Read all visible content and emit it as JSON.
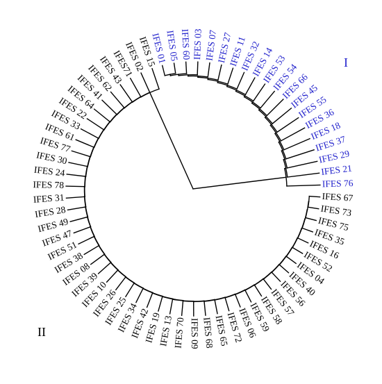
{
  "tree": {
    "group_labels": [
      {
        "text": "I",
        "color": "#2222cc"
      },
      {
        "text": "II",
        "color": "#000000"
      }
    ],
    "colors": {
      "cluster_I": "#2222cc",
      "cluster_II": "#000000",
      "branch": "#000000"
    },
    "leaves": [
      {
        "label": "IFES 01",
        "cluster": "I"
      },
      {
        "label": "IFES 05",
        "cluster": "I"
      },
      {
        "label": "IFES 60",
        "cluster": "I"
      },
      {
        "label": "IFES 03",
        "cluster": "I"
      },
      {
        "label": "IFES 07",
        "cluster": "I"
      },
      {
        "label": "IFES 27",
        "cluster": "I"
      },
      {
        "label": "IFES 11",
        "cluster": "I"
      },
      {
        "label": "IFES 32",
        "cluster": "I"
      },
      {
        "label": "IFES 14",
        "cluster": "I"
      },
      {
        "label": "IFES 53",
        "cluster": "I"
      },
      {
        "label": "IFES 54",
        "cluster": "I"
      },
      {
        "label": "IFES 66",
        "cluster": "I"
      },
      {
        "label": "IFES 45",
        "cluster": "I"
      },
      {
        "label": "IFES 55",
        "cluster": "I"
      },
      {
        "label": "IFES 36",
        "cluster": "I"
      },
      {
        "label": "IFES 18",
        "cluster": "I"
      },
      {
        "label": "IFES 37",
        "cluster": "I"
      },
      {
        "label": "IFES 29",
        "cluster": "I"
      },
      {
        "label": "IFES 21",
        "cluster": "I"
      },
      {
        "label": "IFES 76",
        "cluster": "I"
      },
      {
        "label": "IFES 67",
        "cluster": "II"
      },
      {
        "label": "IFES 73",
        "cluster": "II"
      },
      {
        "label": "IFES 75",
        "cluster": "II"
      },
      {
        "label": "IFES 35",
        "cluster": "II"
      },
      {
        "label": "IFES 16",
        "cluster": "II"
      },
      {
        "label": "IFES 52",
        "cluster": "II"
      },
      {
        "label": "IFES 04",
        "cluster": "II"
      },
      {
        "label": "IFES 40",
        "cluster": "II"
      },
      {
        "label": "IFES 56",
        "cluster": "II"
      },
      {
        "label": "IFES 57",
        "cluster": "II"
      },
      {
        "label": "IFES 58",
        "cluster": "II"
      },
      {
        "label": "IFES 59",
        "cluster": "II"
      },
      {
        "label": "IFES 06",
        "cluster": "II"
      },
      {
        "label": "IFES 72",
        "cluster": "II"
      },
      {
        "label": "IFES 65",
        "cluster": "II"
      },
      {
        "label": "IFES 68",
        "cluster": "II"
      },
      {
        "label": "IFES 09",
        "cluster": "II"
      },
      {
        "label": "IFES 70",
        "cluster": "II"
      },
      {
        "label": "IFES 13",
        "cluster": "II"
      },
      {
        "label": "IFES 19",
        "cluster": "II"
      },
      {
        "label": "IFES 42",
        "cluster": "II"
      },
      {
        "label": "IFES 34",
        "cluster": "II"
      },
      {
        "label": "IFES 25",
        "cluster": "II"
      },
      {
        "label": "IFES 26",
        "cluster": "II"
      },
      {
        "label": "IFES 10",
        "cluster": "II"
      },
      {
        "label": "IFES 39",
        "cluster": "II"
      },
      {
        "label": "IFES 08",
        "cluster": "II"
      },
      {
        "label": "IFES 38",
        "cluster": "II"
      },
      {
        "label": "IFES 51",
        "cluster": "II"
      },
      {
        "label": "IFES 47",
        "cluster": "II"
      },
      {
        "label": "IFES 49",
        "cluster": "II"
      },
      {
        "label": "IFES 28",
        "cluster": "II"
      },
      {
        "label": "IFES 31",
        "cluster": "II"
      },
      {
        "label": "IFES 78",
        "cluster": "II"
      },
      {
        "label": "IFES 24",
        "cluster": "II"
      },
      {
        "label": "IFES 30",
        "cluster": "II"
      },
      {
        "label": "IFES 77",
        "cluster": "II"
      },
      {
        "label": "IFES 61",
        "cluster": "II"
      },
      {
        "label": "IFES 33",
        "cluster": "II"
      },
      {
        "label": "IFES 22",
        "cluster": "II"
      },
      {
        "label": "IFES 64",
        "cluster": "II"
      },
      {
        "label": "IFES 41",
        "cluster": "II"
      },
      {
        "label": "IFES 62",
        "cluster": "II"
      },
      {
        "label": "IFES 43",
        "cluster": "II"
      },
      {
        "label": "IFES71",
        "cluster": "II"
      },
      {
        "label": "IFES 02",
        "cluster": "II"
      },
      {
        "label": "IFES 15",
        "cluster": "II"
      }
    ]
  }
}
